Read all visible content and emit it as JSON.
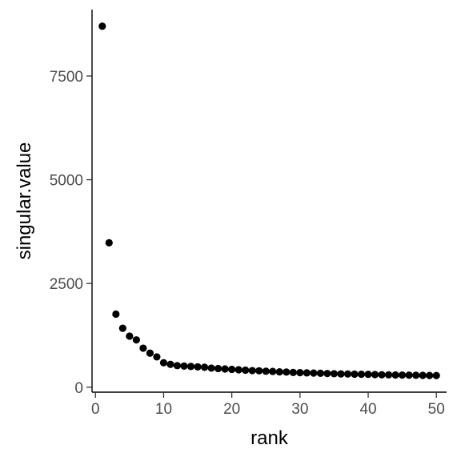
{
  "chart_data": {
    "type": "scatter",
    "xlabel": "rank",
    "ylabel": "singular.value",
    "xlim": [
      -0.5,
      51.5
    ],
    "ylim": [
      -120,
      9100
    ],
    "x_ticks": [
      0,
      10,
      20,
      30,
      40,
      50
    ],
    "y_ticks": [
      0,
      2500,
      5000,
      7500
    ],
    "x_tick_labels": [
      "0",
      "10",
      "20",
      "30",
      "40",
      "50"
    ],
    "y_tick_labels": [
      "0",
      "2500",
      "5000",
      "7500"
    ],
    "grid": false,
    "legend": "none",
    "point_color": "#000000",
    "x": [
      1,
      2,
      3,
      4,
      5,
      6,
      7,
      8,
      9,
      10,
      11,
      12,
      13,
      14,
      15,
      16,
      17,
      18,
      19,
      20,
      21,
      22,
      23,
      24,
      25,
      26,
      27,
      28,
      29,
      30,
      31,
      32,
      33,
      34,
      35,
      36,
      37,
      38,
      39,
      40,
      41,
      42,
      43,
      44,
      45,
      46,
      47,
      48,
      49,
      50
    ],
    "y": [
      8700,
      3480,
      1760,
      1420,
      1230,
      1140,
      940,
      820,
      730,
      590,
      550,
      520,
      510,
      500,
      490,
      480,
      460,
      450,
      440,
      430,
      420,
      410,
      400,
      395,
      385,
      380,
      370,
      365,
      355,
      350,
      345,
      340,
      335,
      330,
      325,
      320,
      318,
      315,
      312,
      310,
      305,
      300,
      298,
      295,
      292,
      290,
      288,
      285,
      282,
      280
    ]
  }
}
